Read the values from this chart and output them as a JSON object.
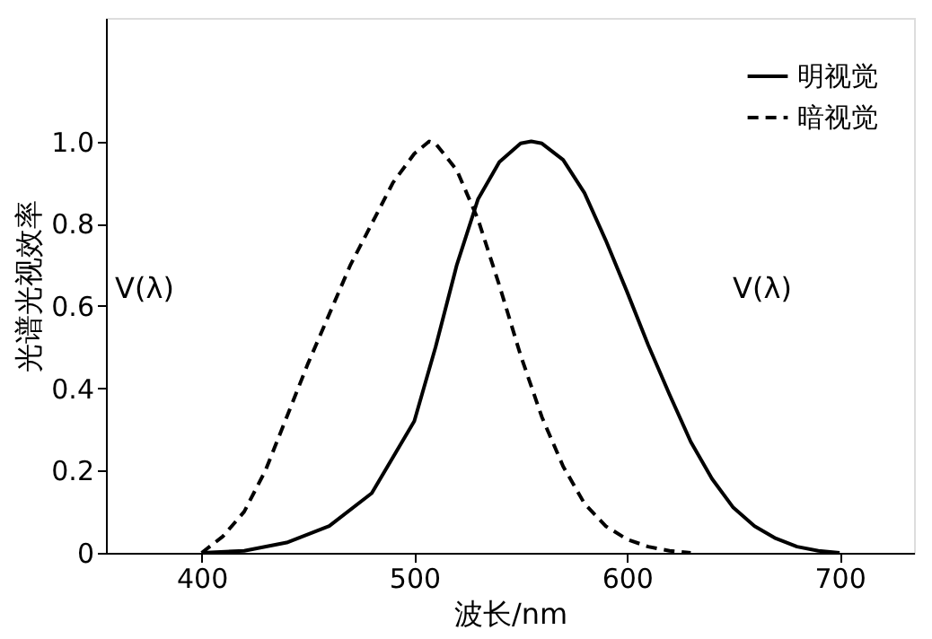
{
  "chart_data": {
    "type": "line",
    "xlabel": "波长/nm",
    "ylabel": "光谱光视效率",
    "xlim": [
      355,
      735
    ],
    "ylim": [
      0,
      1.3
    ],
    "xticks": [
      400,
      500,
      600,
      700
    ],
    "yticks": [
      0,
      0.2,
      0.4,
      0.6,
      {
        "value": 1,
        "label": "1.0"
      },
      0.8
    ],
    "grid": false,
    "legend": "top right",
    "marker": "none",
    "series": [
      {
        "name": "明视觉",
        "color": "#000000",
        "line_style": "solid",
        "x": [
          400,
          420,
          440,
          460,
          480,
          500,
          510,
          520,
          530,
          540,
          550,
          555,
          560,
          570,
          580,
          590,
          600,
          610,
          620,
          630,
          640,
          650,
          660,
          670,
          680,
          690,
          700
        ],
        "values": [
          0,
          0.005,
          0.025,
          0.065,
          0.145,
          0.32,
          0.5,
          0.7,
          0.86,
          0.95,
          0.995,
          1.0,
          0.995,
          0.955,
          0.875,
          0.76,
          0.635,
          0.505,
          0.385,
          0.27,
          0.18,
          0.11,
          0.065,
          0.035,
          0.015,
          0.005,
          0
        ]
      },
      {
        "name": "暗视觉",
        "color": "#000000",
        "line_style": "dashed",
        "x": [
          400,
          410,
          420,
          430,
          440,
          450,
          460,
          470,
          480,
          490,
          500,
          507,
          510,
          520,
          530,
          540,
          550,
          560,
          570,
          580,
          590,
          600,
          610,
          620,
          630
        ],
        "values": [
          0,
          0.04,
          0.1,
          0.2,
          0.33,
          0.46,
          0.58,
          0.7,
          0.8,
          0.9,
          0.97,
          1.0,
          0.995,
          0.93,
          0.81,
          0.65,
          0.48,
          0.33,
          0.21,
          0.12,
          0.065,
          0.033,
          0.015,
          0.005,
          0
        ]
      }
    ],
    "annotations": [
      "V(λ)",
      "V(λ)"
    ]
  }
}
